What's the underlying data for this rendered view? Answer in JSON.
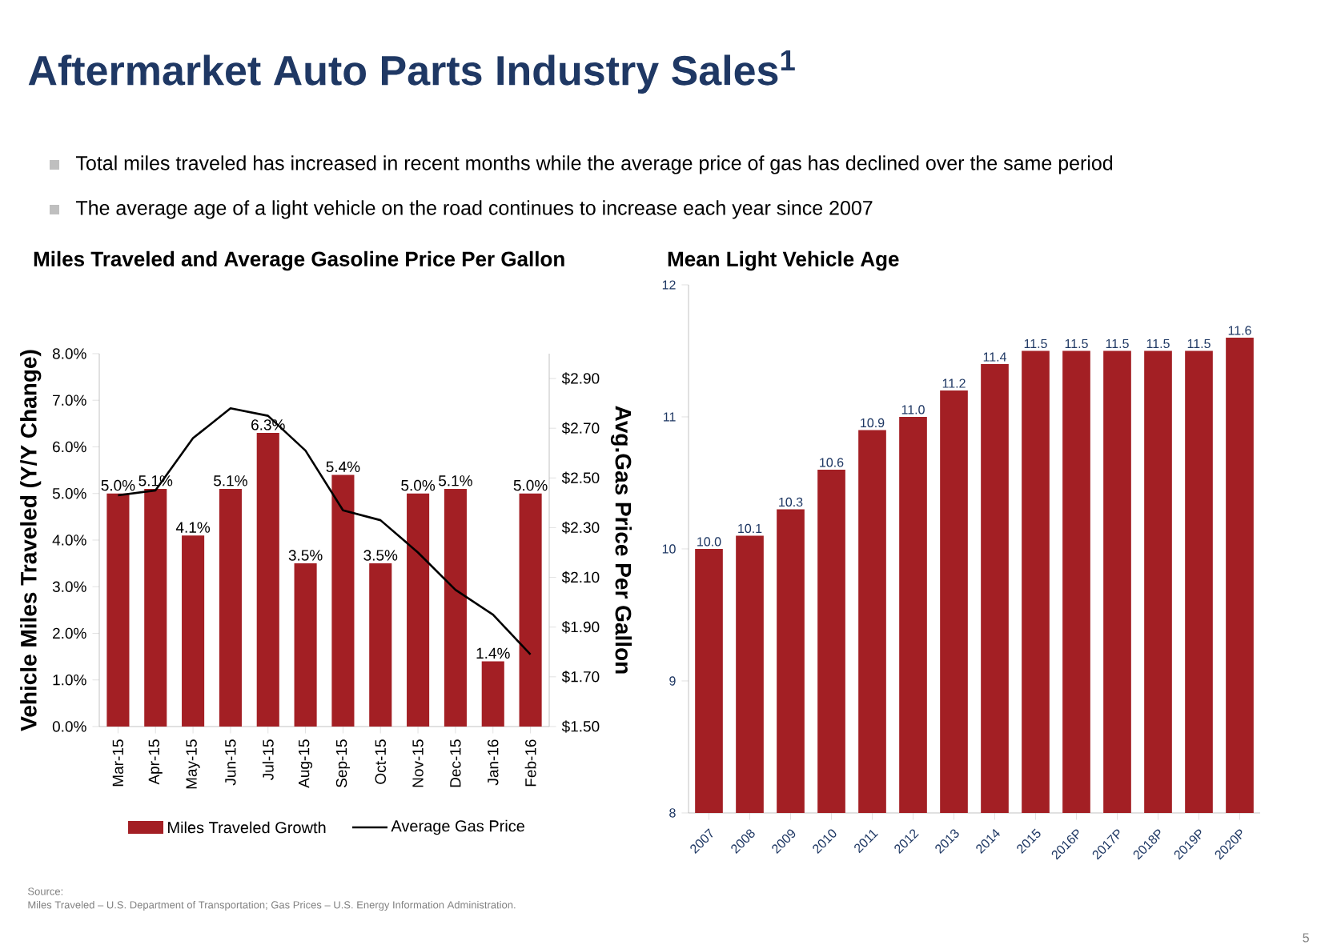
{
  "chart_data": [
    {
      "type": "bar",
      "title": "Miles Traveled and Average Gasoline Price Per Gallon",
      "ylabel": "Vehicle Miles Traveled (Y/Y Change)",
      "y2label": "Avg.Gas Price Per Gallon",
      "categories": [
        "Mar-15",
        "Apr-15",
        "May-15",
        "Jun-15",
        "Jul-15",
        "Aug-15",
        "Sep-15",
        "Oct-15",
        "Nov-15",
        "Dec-15",
        "Jan-16",
        "Feb-16"
      ],
      "series": [
        {
          "name": "Miles Traveled Growth",
          "type": "bar",
          "color": "#a31f24",
          "values": [
            5.0,
            5.1,
            4.1,
            5.1,
            6.3,
            3.5,
            5.4,
            3.5,
            5.0,
            5.1,
            1.4,
            5.0
          ],
          "value_labels": [
            "5.0%",
            "5.1%",
            "4.1%",
            "5.1%",
            "6.3%",
            "3.5%",
            "5.4%",
            "3.5%",
            "5.0%",
            "5.1%",
            "1.4%",
            "5.0%"
          ]
        },
        {
          "name": "Average Gas Price",
          "type": "line",
          "axis": "y2",
          "color": "#000000",
          "values": [
            2.43,
            2.45,
            2.66,
            2.78,
            2.75,
            2.61,
            2.37,
            2.33,
            2.2,
            2.05,
            1.95,
            1.79
          ]
        }
      ],
      "ylim": [
        0,
        8
      ],
      "yticks": [
        {
          "value": 0,
          "label": "0.0%"
        },
        {
          "value": 1,
          "label": "1.0%"
        },
        {
          "value": 2,
          "label": "2.0%"
        },
        {
          "value": 3,
          "label": "3.0%"
        },
        {
          "value": 4,
          "label": "4.0%"
        },
        {
          "value": 5,
          "label": "5.0%"
        },
        {
          "value": 6,
          "label": "6.0%"
        },
        {
          "value": 7,
          "label": "7.0%"
        },
        {
          "value": 8,
          "label": "8.0%"
        }
      ],
      "y2lim": [
        1.5,
        3.0
      ],
      "y2ticks": [
        {
          "value": 1.5,
          "label": "$1.50"
        },
        {
          "value": 1.7,
          "label": "$1.70"
        },
        {
          "value": 1.9,
          "label": "$1.90"
        },
        {
          "value": 2.1,
          "label": "$2.10"
        },
        {
          "value": 2.3,
          "label": "$2.30"
        },
        {
          "value": 2.5,
          "label": "$2.50"
        },
        {
          "value": 2.7,
          "label": "$2.70"
        },
        {
          "value": 2.9,
          "label": "$2.90"
        }
      ],
      "legend": "bottom",
      "annotations": [
        "Aftermarket Auto Parts Industry Sales$^{1}$",
        "Total miles traveled has increased in recent months while the average price of gas has declined over the same period",
        "The average age of a light vehicle on the road continues to increase each year since 2007",
        "Source:",
        "Miles Traveled – U.S. Department of Transportation; Gas Prices – U.S. Energy Information Administration.",
        "5"
      ]
    },
    {
      "type": "bar",
      "title": "Mean Light Vehicle Age",
      "categories": [
        "2007",
        "2008",
        "2009",
        "2010",
        "2011",
        "2012",
        "2013",
        "2014",
        "2015",
        "2016P",
        "2017P",
        "2018P",
        "2019P",
        "2020P"
      ],
      "values": [
        10.0,
        10.1,
        10.3,
        10.6,
        10.9,
        11.0,
        11.2,
        11.4,
        11.5,
        11.5,
        11.5,
        11.5,
        11.5,
        11.6
      ],
      "value_labels": [
        "10.0",
        "10.1",
        "10.3",
        "10.6",
        "10.9",
        "11.0",
        "11.2",
        "11.4",
        "11.5",
        "11.5",
        "11.5",
        "11.5",
        "11.5",
        "11.6"
      ],
      "color": "#a31f24",
      "ylim": [
        8,
        12
      ],
      "yticks": [
        8,
        9,
        10,
        11,
        12
      ]
    }
  ]
}
